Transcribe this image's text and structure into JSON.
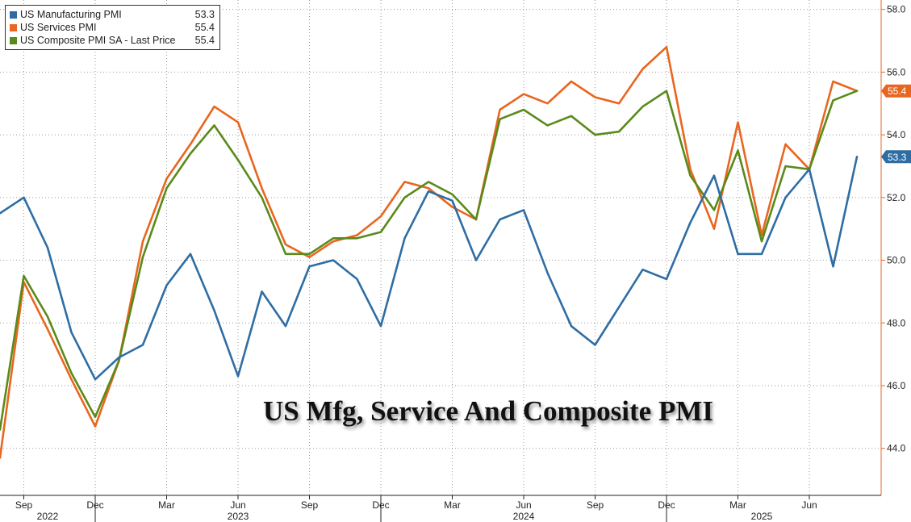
{
  "chart_data": {
    "type": "line",
    "title": "US Mfg, Service And Composite PMI",
    "x": [
      "2022-08",
      "2022-09",
      "2022-10",
      "2022-11",
      "2022-12",
      "2023-01",
      "2023-02",
      "2023-03",
      "2023-04",
      "2023-05",
      "2023-06",
      "2023-07",
      "2023-08",
      "2023-09",
      "2023-10",
      "2023-11",
      "2023-12",
      "2024-01",
      "2024-02",
      "2024-03",
      "2024-04",
      "2024-05",
      "2024-06",
      "2024-07",
      "2024-08",
      "2024-09",
      "2024-10",
      "2024-11",
      "2024-12",
      "2025-01",
      "2025-02",
      "2025-03",
      "2025-04",
      "2025-05",
      "2025-06",
      "2025-07",
      "2025-08"
    ],
    "x_tick_labels": [
      {
        "x": "2022-09",
        "label": "Sep"
      },
      {
        "x": "2022-12",
        "label": "Dec"
      },
      {
        "x": "2023-03",
        "label": "Mar"
      },
      {
        "x": "2023-06",
        "label": "Jun"
      },
      {
        "x": "2023-09",
        "label": "Sep"
      },
      {
        "x": "2023-12",
        "label": "Dec"
      },
      {
        "x": "2024-03",
        "label": "Mar"
      },
      {
        "x": "2024-06",
        "label": "Jun"
      },
      {
        "x": "2024-09",
        "label": "Sep"
      },
      {
        "x": "2024-12",
        "label": "Dec"
      },
      {
        "x": "2025-03",
        "label": "Mar"
      },
      {
        "x": "2025-06",
        "label": "Jun"
      }
    ],
    "year_labels": [
      {
        "x": "2022-10",
        "label": "2022"
      },
      {
        "x": "2023-06",
        "label": "2023"
      },
      {
        "x": "2024-06",
        "label": "2024"
      },
      {
        "x": "2025-04",
        "label": "2025"
      }
    ],
    "year_dividers": [
      "2022-12",
      "2023-12",
      "2024-12"
    ],
    "ylim": [
      42.5,
      58.3
    ],
    "y_ticks": [
      "44.0",
      "46.0",
      "48.0",
      "50.0",
      "52.0",
      "54.0",
      "56.0",
      "58.0"
    ],
    "axis_position": "right",
    "grid": true,
    "legend_position": "top-left",
    "series": [
      {
        "name": "US Manufacturing PMI",
        "last_price": "53.3",
        "color": "#2e6da4",
        "values": [
          51.5,
          52.0,
          50.4,
          47.7,
          46.2,
          46.9,
          47.3,
          49.2,
          50.2,
          48.4,
          46.3,
          49.0,
          47.9,
          49.8,
          50.0,
          49.4,
          47.9,
          50.7,
          52.2,
          51.9,
          50.0,
          51.3,
          51.6,
          49.6,
          47.9,
          47.3,
          48.5,
          49.7,
          49.4,
          51.2,
          52.7,
          50.2,
          50.2,
          52.0,
          52.9,
          49.8,
          53.3
        ]
      },
      {
        "name": "US Services PMI",
        "last_price": "55.4",
        "color": "#e8661f",
        "values": [
          43.7,
          49.3,
          47.8,
          46.2,
          44.7,
          46.8,
          50.6,
          52.6,
          53.7,
          54.9,
          54.4,
          52.3,
          50.5,
          50.1,
          50.6,
          50.8,
          51.4,
          52.5,
          52.3,
          51.7,
          51.3,
          54.8,
          55.3,
          55.0,
          55.7,
          55.2,
          55.0,
          56.1,
          56.8,
          52.9,
          51.0,
          54.4,
          50.8,
          53.7,
          52.9,
          55.7,
          55.4
        ]
      },
      {
        "name": "US Composite PMI SA - Last Price",
        "last_price": "55.4",
        "color": "#5a8a1a",
        "values": [
          44.6,
          49.5,
          48.2,
          46.4,
          45.0,
          46.8,
          50.1,
          52.3,
          53.4,
          54.3,
          53.2,
          52.0,
          50.2,
          50.2,
          50.7,
          50.7,
          50.9,
          52.0,
          52.5,
          52.1,
          51.3,
          54.5,
          54.8,
          54.3,
          54.6,
          54.0,
          54.1,
          54.9,
          55.4,
          52.7,
          51.6,
          53.5,
          50.6,
          53.0,
          52.9,
          55.1,
          55.4
        ]
      }
    ]
  }
}
